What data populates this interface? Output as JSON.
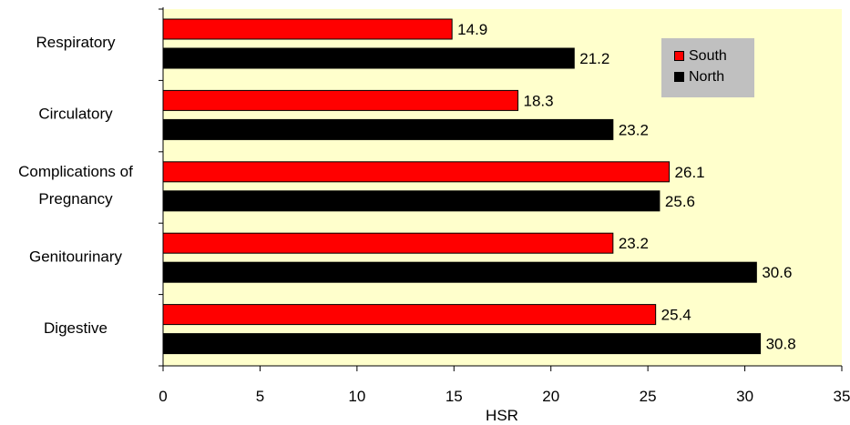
{
  "colors": {
    "south": "#ff0000",
    "north": "#000000",
    "plot_bg": "#ffffcc",
    "legend_bg": "#c0c0c0"
  },
  "chart_data": {
    "type": "bar",
    "orientation": "horizontal",
    "categories": [
      "Respiratory",
      "Circulatory",
      "Complications of Pregnancy",
      "Genitourinary",
      "Digestive"
    ],
    "category_lines": [
      [
        "Respiratory"
      ],
      [
        "Circulatory"
      ],
      [
        "Complications of",
        "Pregnancy"
      ],
      [
        "Genitourinary"
      ],
      [
        "Digestive"
      ]
    ],
    "series": [
      {
        "name": "South",
        "values": [
          14.9,
          18.3,
          26.1,
          23.2,
          25.4
        ]
      },
      {
        "name": "North",
        "values": [
          21.2,
          23.2,
          25.6,
          30.6,
          30.8
        ]
      }
    ],
    "value_labels": [
      [
        "14.9",
        "18.3",
        "26.1",
        "23.2",
        "25.4"
      ],
      [
        "21.2",
        "23.2",
        "25.6",
        "30.6",
        "30.8"
      ]
    ],
    "xticks": [
      "0",
      "5",
      "10",
      "15",
      "20",
      "25",
      "30",
      "35"
    ],
    "xlabel": "HSR",
    "ylabel": "",
    "xlim": [
      0,
      35
    ],
    "grid": false,
    "legend_position": "top-right"
  }
}
